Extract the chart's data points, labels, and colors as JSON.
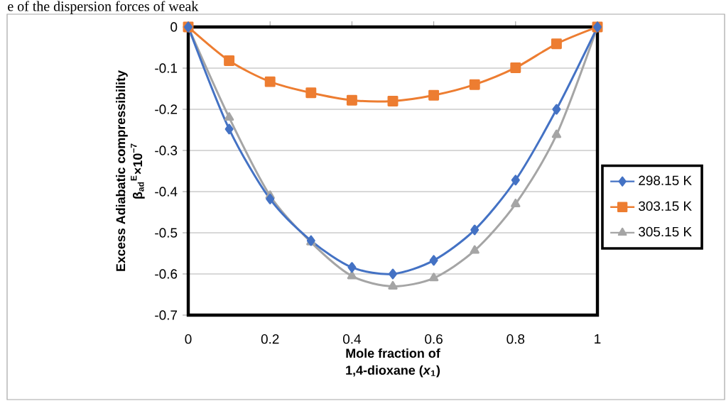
{
  "chart_data": {
    "type": "line",
    "annotations": [
      "e of the dispersion forces of weak"
    ],
    "xlabel": "Mole fraction of 1,4-dioxane (*x*$_{1}$)",
    "ylabel": "Excess Adiabatic compressibility β$_{ad}$$^{E}$×10$^{−7}$",
    "x": [
      0,
      0.1,
      0.2,
      0.3,
      0.4,
      0.5,
      0.6,
      0.7,
      0.8,
      0.9,
      1
    ],
    "series": [
      {
        "name": "298.15 K",
        "color": "#4472c4",
        "marker": "diamond",
        "values": [
          0,
          -0.248,
          -0.418,
          -0.519,
          -0.584,
          -0.6,
          -0.567,
          -0.493,
          -0.372,
          -0.2,
          0
        ]
      },
      {
        "name": "303.15 K",
        "color": "#ed7d31",
        "marker": "square",
        "values": [
          0,
          -0.082,
          -0.133,
          -0.16,
          -0.178,
          -0.18,
          -0.166,
          -0.14,
          -0.099,
          -0.041,
          0
        ]
      },
      {
        "name": "305.15 K",
        "color": "#a5a5a5",
        "marker": "triangle",
        "values": [
          0,
          -0.22,
          -0.41,
          -0.523,
          -0.605,
          -0.63,
          -0.61,
          -0.543,
          -0.43,
          -0.262,
          0
        ]
      }
    ],
    "xlim": [
      0,
      1
    ],
    "xticks": [
      0,
      0.2,
      0.4,
      0.6,
      0.8,
      1
    ],
    "ylim": [
      -0.7,
      0
    ],
    "yticks": [
      0,
      -0.1,
      -0.2,
      -0.3,
      -0.4,
      -0.5,
      -0.6,
      -0.7
    ],
    "grid": "y",
    "legend": "right",
    "line_style": "solid"
  }
}
